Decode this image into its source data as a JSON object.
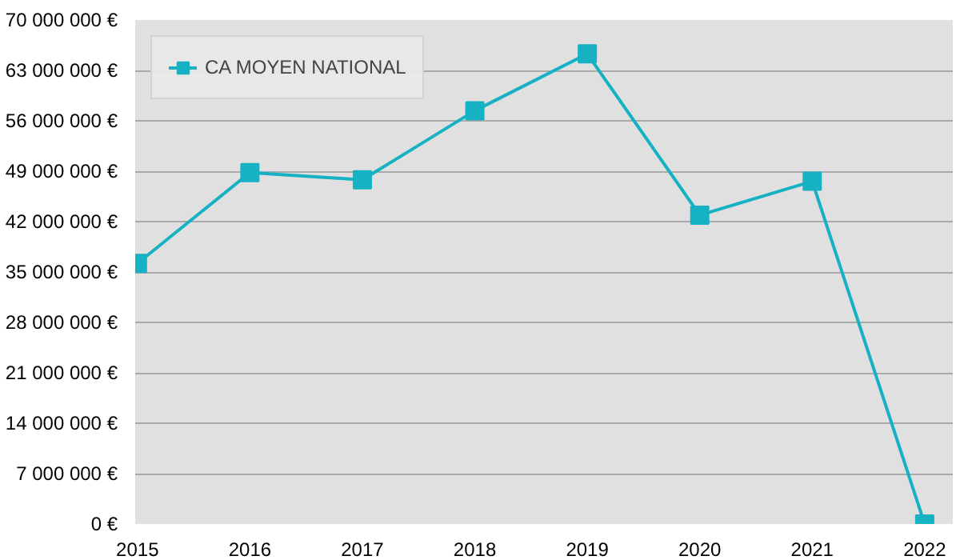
{
  "chart_data": {
    "type": "line",
    "categories": [
      "2015",
      "2016",
      "2017",
      "2018",
      "2019",
      "2020",
      "2021",
      "2022"
    ],
    "series": [
      {
        "name": "CA MOYEN NATIONAL",
        "color": "#16b2c4",
        "values": [
          36200000,
          48800000,
          47800000,
          57400000,
          65300000,
          42900000,
          47600000,
          0
        ]
      }
    ],
    "ylim": [
      0,
      70000000
    ],
    "yticks": [
      {
        "value": 0,
        "label": "0 €"
      },
      {
        "value": 7000000,
        "label": "7 000 000 €"
      },
      {
        "value": 14000000,
        "label": "14 000 000 €"
      },
      {
        "value": 21000000,
        "label": "21 000 000 €"
      },
      {
        "value": 28000000,
        "label": "28 000 000 €"
      },
      {
        "value": 35000000,
        "label": "35 000 000 €"
      },
      {
        "value": 42000000,
        "label": "42 000 000 €"
      },
      {
        "value": 49000000,
        "label": "49 000 000 €"
      },
      {
        "value": 56000000,
        "label": "56 000 000 €"
      },
      {
        "value": 63000000,
        "label": "63 000 000 €"
      },
      {
        "value": 70000000,
        "label": "70 000 000 €"
      }
    ],
    "grid": "y",
    "legend": "top left",
    "marker": "square",
    "line_style": "solid"
  }
}
